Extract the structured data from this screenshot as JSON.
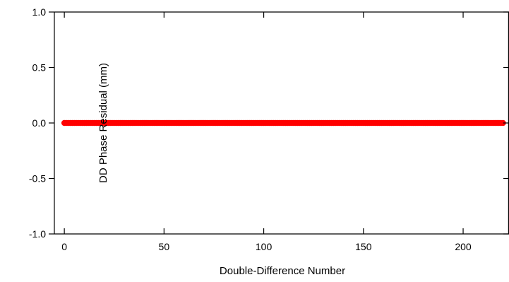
{
  "chart_data": {
    "type": "scatter",
    "title": "",
    "xlabel": "Double-Difference Number",
    "ylabel": "DD Phase Residual (mm)",
    "xlim": [
      -5,
      223
    ],
    "ylim": [
      -1.0,
      1.0
    ],
    "xticks": [
      0,
      50,
      100,
      150,
      200
    ],
    "xtick_labels": [
      "0",
      "50",
      "100",
      "150",
      "200"
    ],
    "yticks": [
      -1.0,
      -0.5,
      0.0,
      0.5,
      1.0
    ],
    "ytick_labels": [
      "-1.0",
      "-0.5",
      "0.0",
      "0.5",
      "1.0"
    ],
    "grid": false,
    "legend": "none",
    "series": [
      {
        "color": "#ff0000",
        "x_start": 0,
        "x_end": 220,
        "x_step": 1,
        "y_constant": 0.0
      }
    ]
  }
}
